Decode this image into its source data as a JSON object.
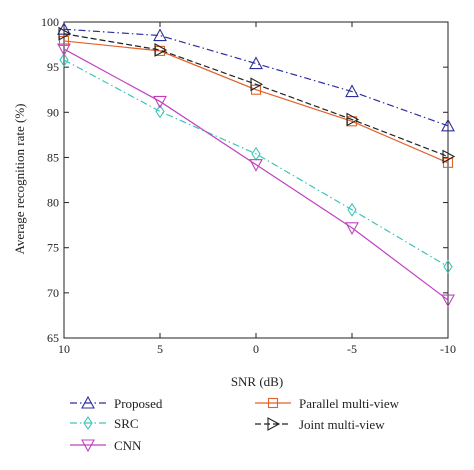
{
  "chart_data": {
    "type": "line",
    "title": "",
    "xlabel": "SNR (dB)",
    "ylabel": "Average recognition rate (%)",
    "categories": [
      "10",
      "5",
      "0",
      "-5",
      "-10"
    ],
    "ylim": [
      65,
      100
    ],
    "yticks": [
      "65",
      "70",
      "75",
      "80",
      "85",
      "90",
      "95",
      "100"
    ],
    "grid": false,
    "legend_position": "bottom",
    "series": [
      {
        "name": "Proposed",
        "values": [
          99.2,
          98.5,
          95.4,
          92.3,
          88.5
        ],
        "color": "#2e2e9e",
        "dash": "dashdot",
        "marker": "triangle-up"
      },
      {
        "name": "SRC",
        "values": [
          95.8,
          90.1,
          85.4,
          79.2,
          72.9
        ],
        "color": "#40c4b8",
        "dash": "dashdot",
        "marker": "diamond"
      },
      {
        "name": "CNN",
        "values": [
          97.0,
          91.2,
          84.2,
          77.2,
          69.2
        ],
        "color": "#c040c0",
        "dash": "solid",
        "marker": "triangle-down"
      },
      {
        "name": "Parallel multi-view",
        "values": [
          97.9,
          96.8,
          92.5,
          89.0,
          84.4
        ],
        "color": "#e0622a",
        "dash": "solid",
        "marker": "square"
      },
      {
        "name": "Joint multi-view",
        "values": [
          98.7,
          96.9,
          93.1,
          89.2,
          85.1
        ],
        "color": "#222222",
        "dash": "dashed",
        "marker": "triangle-right"
      }
    ]
  }
}
